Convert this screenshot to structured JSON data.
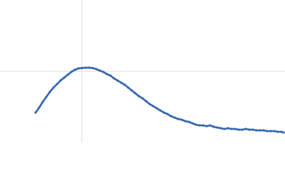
{
  "chart_data": {
    "type": "scatter",
    "xlim": [
      0,
      400
    ],
    "ylim": [
      0,
      200
    ],
    "xticks": [
      115
    ],
    "yticks": [
      100
    ],
    "grid": true,
    "tick_labels": false,
    "series": [
      {
        "color": "#3465b0",
        "x": [
          50,
          55,
          60,
          65,
          70,
          75,
          80,
          85,
          90,
          95,
          100,
          105,
          110,
          115,
          120,
          125,
          130,
          135,
          140,
          145,
          150,
          155,
          160,
          165,
          170,
          175,
          180,
          185,
          190,
          195,
          200,
          205,
          210,
          215,
          220,
          225,
          230,
          235,
          240,
          245,
          250,
          255,
          260,
          265,
          270,
          275,
          280,
          285,
          290,
          295,
          300,
          305,
          310,
          315,
          320,
          325,
          330,
          335,
          340,
          345,
          350,
          355,
          360,
          365,
          370,
          375,
          380,
          385,
          390,
          395,
          398
        ],
        "values": [
          42,
          49,
          57,
          64,
          71,
          77,
          82,
          87,
          91,
          95,
          99,
          102,
          104,
          104.5,
          105,
          105,
          104.5,
          103,
          101,
          99,
          96,
          94,
          90,
          87,
          84,
          81,
          77,
          73,
          69,
          65,
          62,
          58,
          54,
          51,
          48,
          45,
          42,
          40,
          37,
          35,
          33,
          32,
          30,
          29,
          27,
          25,
          24,
          24,
          23,
          24,
          22,
          21,
          20,
          19,
          20,
          19,
          19,
          18,
          18,
          19,
          18,
          18,
          17,
          17,
          17,
          16,
          16,
          16,
          15,
          15,
          14
        ]
      }
    ]
  }
}
